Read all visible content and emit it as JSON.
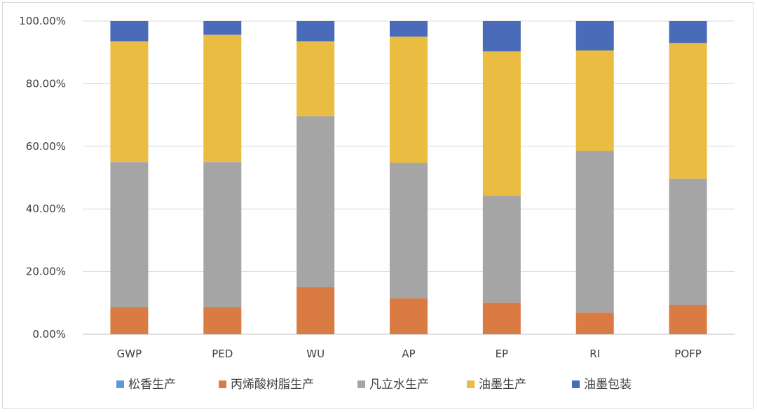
{
  "chart_data": {
    "type": "bar",
    "stacked": true,
    "categories": [
      "GWP",
      "PED",
      "WU",
      "AP",
      "EP",
      "RI",
      "POFP"
    ],
    "ylim": [
      0,
      100
    ],
    "yticks": [
      "0.00%",
      "20.00%",
      "40.00%",
      "60.00%",
      "80.00%",
      "100.00%"
    ],
    "grid": true,
    "legend_position": "bottom",
    "series": [
      {
        "name": "松香生产",
        "color": "#5B9BD5",
        "values": [
          0,
          0,
          0,
          0,
          0,
          0,
          0
        ]
      },
      {
        "name": "丙烯酸树脂生产",
        "color": "#DA7B43",
        "values": [
          8.7,
          8.7,
          15.0,
          11.5,
          10.1,
          6.9,
          9.4
        ]
      },
      {
        "name": "凡立水生产",
        "color": "#A5A5A5",
        "values": [
          46.3,
          46.3,
          54.6,
          43.2,
          34.1,
          51.6,
          40.3
        ]
      },
      {
        "name": "油墨生产",
        "color": "#EBBC42",
        "values": [
          38.5,
          40.6,
          23.9,
          40.3,
          46.1,
          32.1,
          43.3
        ]
      },
      {
        "name": "油墨包装",
        "color": "#4A6CB8",
        "values": [
          6.5,
          4.4,
          6.5,
          5.0,
          9.7,
          9.4,
          7.0
        ]
      }
    ]
  }
}
